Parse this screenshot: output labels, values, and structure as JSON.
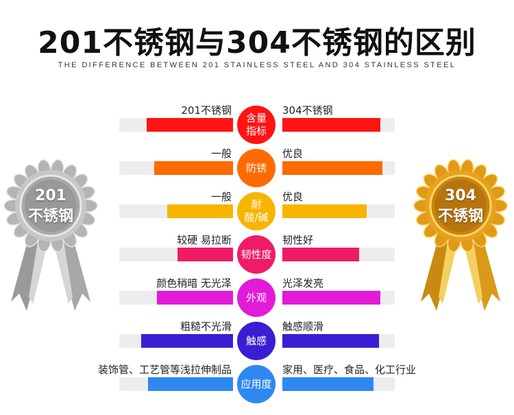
{
  "header": {
    "title": "201不锈钢与304不锈钢的区别",
    "subtitle": "THE DIFFERENCE BETWEEN 201 STAINLESS STEEL AND 304 STAINLESS STEEL"
  },
  "medals": {
    "left": {
      "line1": "201",
      "line2": "不锈钢",
      "color": "#b9b9b9"
    },
    "right": {
      "line1": "304",
      "line2": "不锈钢",
      "color": "#e0a020"
    }
  },
  "rows": [
    {
      "left_label": "201不锈钢",
      "right_label": "304不锈钢",
      "center": "含量\n指标",
      "color": "#ff1313",
      "left_fill": 0.76,
      "right_fill": 0.87
    },
    {
      "left_label": "一般",
      "right_label": "优良",
      "center": "防锈",
      "color": "#ff6a00",
      "left_fill": 0.69,
      "right_fill": 0.89
    },
    {
      "left_label": "一般",
      "right_label": "优良",
      "center": "耐\n酸/碱",
      "color": "#f7b500",
      "left_fill": 0.58,
      "right_fill": 0.75
    },
    {
      "left_label": "较硬 易拉断",
      "right_label": "韧性好",
      "center": "韧性度",
      "color": "#ef1b66",
      "left_fill": 0.49,
      "right_fill": 0.68
    },
    {
      "left_label": "颜色稍暗 无光泽",
      "right_label": "光泽发亮",
      "center": "外观",
      "color": "#e31ad8",
      "left_fill": 0.67,
      "right_fill": 0.87
    },
    {
      "left_label": "粗糙不光滑",
      "right_label": "触感顺滑",
      "center": "触感",
      "color": "#3a1ed4",
      "left_fill": 0.81,
      "right_fill": 0.86
    },
    {
      "left_label": "装饰管、工艺管等浅拉伸制品",
      "right_label": "家用、医疗、食品、化工行业",
      "center": "应用度",
      "color": "#2f88f2",
      "left_fill": 0.75,
      "right_fill": 0.81
    }
  ]
}
